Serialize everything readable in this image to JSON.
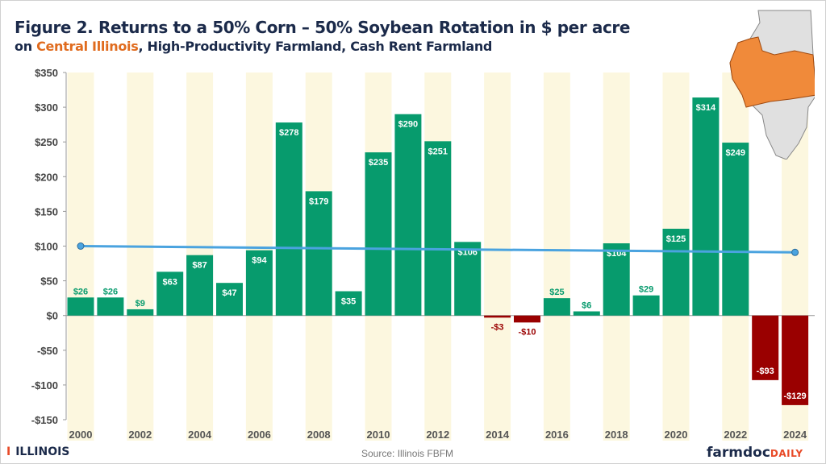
{
  "title": "Figure 2. Returns to a 50% Corn – 50% Soybean Rotation in $ per acre",
  "subtitle_prefix": "on ",
  "subtitle_highlight": "Central Illinois",
  "subtitle_rest": ", High-Productivity Farmland, Cash Rent Farmland",
  "source": "Source: Illinois FBFM",
  "logo_left": "ILLINOIS",
  "logo_right_a": "farmdoc",
  "logo_right_b": "DAILY",
  "colors": {
    "positive": "#079b6d",
    "negative": "#9a0000",
    "band": "#fcf7df",
    "trend": "#4aa3df",
    "highlight": "#e06b1e"
  },
  "chart_data": {
    "type": "bar",
    "categories": [
      "2000",
      "2001",
      "2002",
      "2003",
      "2004",
      "2005",
      "2006",
      "2007",
      "2008",
      "2009",
      "2010",
      "2011",
      "2012",
      "2013",
      "2014",
      "2015",
      "2016",
      "2017",
      "2018",
      "2019",
      "2020",
      "2021",
      "2022",
      "2023",
      "2024"
    ],
    "values": [
      26,
      26,
      9,
      63,
      87,
      47,
      94,
      278,
      179,
      35,
      235,
      290,
      251,
      106,
      -3,
      -10,
      25,
      6,
      104,
      29,
      125,
      314,
      249,
      -93,
      -129
    ],
    "data_labels": [
      "$26",
      "$26",
      "$9",
      "$63",
      "$87",
      "$47",
      "$94",
      "$278",
      "$179",
      "$35",
      "$235",
      "$290",
      "$251",
      "$106",
      "-$3",
      "-$10",
      "$25",
      "$6",
      "$104",
      "$29",
      "$125",
      "$314",
      "$249",
      "-$93",
      "-$129"
    ],
    "x_tick_labels": [
      "2000",
      "2002",
      "2004",
      "2006",
      "2008",
      "2010",
      "2012",
      "2014",
      "2016",
      "2018",
      "2020",
      "2022",
      "2024"
    ],
    "y_ticks": [
      350,
      300,
      250,
      200,
      150,
      100,
      50,
      0,
      -50,
      -100,
      -150
    ],
    "y_tick_labels": [
      "$350",
      "$300",
      "$250",
      "$200",
      "$150",
      "$100",
      "$50",
      "$0",
      "-$50",
      "-$100",
      "-$150"
    ],
    "ylim": [
      -150,
      350
    ],
    "trend_line": {
      "x": [
        "2000",
        "2024"
      ],
      "y": [
        100,
        91
      ]
    },
    "grid": false
  }
}
